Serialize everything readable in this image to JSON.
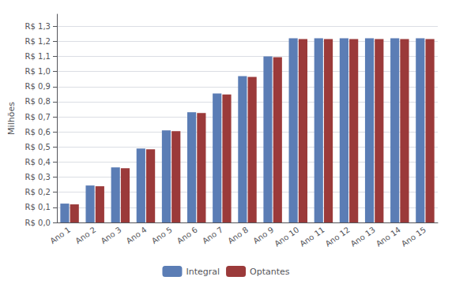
{
  "chart_data": {
    "type": "bar",
    "categories": [
      "Ano 1",
      "Ano 2",
      "Ano 3",
      "Ano 4",
      "Ano 5",
      "Ano 6",
      "Ano 7",
      "Ano 8",
      "Ano 9",
      "Ano 10",
      "Ano 11",
      "Ano 12",
      "Ano 13",
      "Ano 14",
      "Ano 15"
    ],
    "series": [
      {
        "name": "Integral",
        "color": "#5B7DB5",
        "values": [
          0.125,
          0.245,
          0.365,
          0.49,
          0.61,
          0.73,
          0.855,
          0.97,
          1.1,
          1.22,
          1.22,
          1.22,
          1.22,
          1.22,
          1.22
        ]
      },
      {
        "name": "Optantes",
        "color": "#9B3A3A",
        "values": [
          0.12,
          0.24,
          0.36,
          0.485,
          0.605,
          0.725,
          0.848,
          0.965,
          1.095,
          1.215,
          1.215,
          1.215,
          1.215,
          1.215,
          1.215
        ]
      }
    ],
    "ylabel": "Milhões",
    "ylim": [
      0,
      1.38
    ],
    "yticks": [
      {
        "value": 0.0,
        "label": "R$ 0,0"
      },
      {
        "value": 0.1,
        "label": "R$ 0,1"
      },
      {
        "value": 0.2,
        "label": "R$ 0,2"
      },
      {
        "value": 0.3,
        "label": "R$ 0,3"
      },
      {
        "value": 0.4,
        "label": "R$ 0,4"
      },
      {
        "value": 0.5,
        "label": "R$ 0,5"
      },
      {
        "value": 0.6,
        "label": "R$ 0,6"
      },
      {
        "value": 0.7,
        "label": "R$ 0,7"
      },
      {
        "value": 0.8,
        "label": "R$ 0,8"
      },
      {
        "value": 0.9,
        "label": "R$ 0,9"
      },
      {
        "value": 1.0,
        "label": "R$ 1,0"
      },
      {
        "value": 1.1,
        "label": "R$ 1,1"
      },
      {
        "value": 1.2,
        "label": "R$ 1,2"
      },
      {
        "value": 1.3,
        "label": "R$ 1,3"
      }
    ],
    "grid": true,
    "legend": "bottom"
  }
}
